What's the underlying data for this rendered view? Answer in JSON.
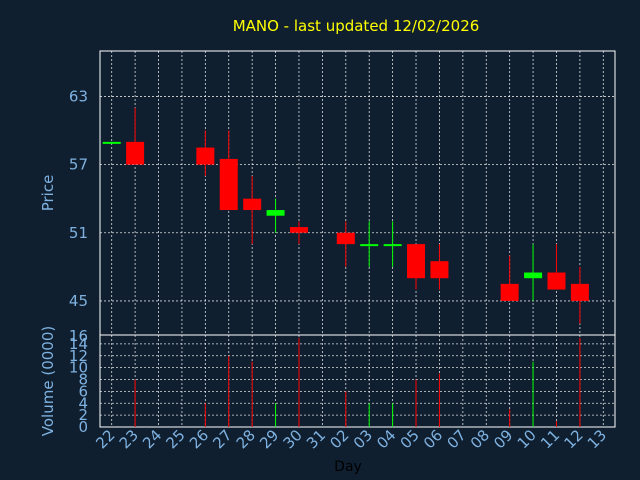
{
  "chart_data": {
    "type": "candlestick",
    "title": "MANO - last updated 12/02/2026",
    "price_panel": {
      "ylabel": "Price",
      "yticks": [
        45,
        51,
        57,
        63
      ],
      "ylim": [
        42,
        67
      ]
    },
    "volume_panel": {
      "ylabel": "Volume (0000)",
      "yticks": [
        0,
        2,
        4,
        6,
        8,
        10,
        12,
        14
      ],
      "ylim": [
        0,
        15.5
      ]
    },
    "xlabel": "Day",
    "x_labels": [
      "22",
      "23",
      "24",
      "25",
      "26",
      "27",
      "28",
      "29",
      "30",
      "31",
      "02",
      "03",
      "04",
      "05",
      "06",
      "07",
      "08",
      "09",
      "10",
      "11",
      "12",
      "13"
    ],
    "grid": true,
    "colors": {
      "up": "#00ff00",
      "down": "#ff0000",
      "grid": "#ffffff",
      "background": "#0f1f30",
      "title": "#ffff00",
      "axis_text": "#7fb2e0"
    },
    "candles": [
      {
        "x": "22",
        "open": 59.0,
        "high": 59.0,
        "low": 59.0,
        "close": 59.0,
        "volume": 0
      },
      {
        "x": "23",
        "open": 59.0,
        "high": 62.0,
        "low": 57.0,
        "close": 57.0,
        "volume": 8
      },
      {
        "x": "26",
        "open": 58.5,
        "high": 60.0,
        "low": 56.0,
        "close": 57.0,
        "volume": 4
      },
      {
        "x": "27",
        "open": 57.5,
        "high": 60.0,
        "low": 53.0,
        "close": 53.0,
        "volume": 12
      },
      {
        "x": "28",
        "open": 54.0,
        "high": 56.0,
        "low": 50.0,
        "close": 53.0,
        "volume": 11
      },
      {
        "x": "29",
        "open": 52.5,
        "high": 54.0,
        "low": 51.0,
        "close": 53.0,
        "volume": 4
      },
      {
        "x": "30",
        "open": 51.5,
        "high": 52.0,
        "low": 50.0,
        "close": 51.0,
        "volume": 15
      },
      {
        "x": "02",
        "open": 51.0,
        "high": 52.0,
        "low": 48.0,
        "close": 50.0,
        "volume": 6
      },
      {
        "x": "03",
        "open": 50.0,
        "high": 52.0,
        "low": 48.0,
        "close": 50.0,
        "volume": 4
      },
      {
        "x": "04",
        "open": 50.0,
        "high": 52.0,
        "low": 48.0,
        "close": 50.0,
        "volume": 4
      },
      {
        "x": "05",
        "open": 50.0,
        "high": 50.0,
        "low": 46.0,
        "close": 47.0,
        "volume": 8
      },
      {
        "x": "06",
        "open": 48.5,
        "high": 50.0,
        "low": 46.0,
        "close": 47.0,
        "volume": 9
      },
      {
        "x": "09",
        "open": 46.5,
        "high": 49.0,
        "low": 45.0,
        "close": 45.0,
        "volume": 3
      },
      {
        "x": "10",
        "open": 47.0,
        "high": 50.0,
        "low": 45.0,
        "close": 47.5,
        "volume": 11
      },
      {
        "x": "11",
        "open": 47.5,
        "high": 50.0,
        "low": 46.0,
        "close": 46.0,
        "volume": 1
      },
      {
        "x": "12",
        "open": 46.5,
        "high": 48.0,
        "low": 43.0,
        "close": 45.0,
        "volume": 15
      }
    ]
  }
}
